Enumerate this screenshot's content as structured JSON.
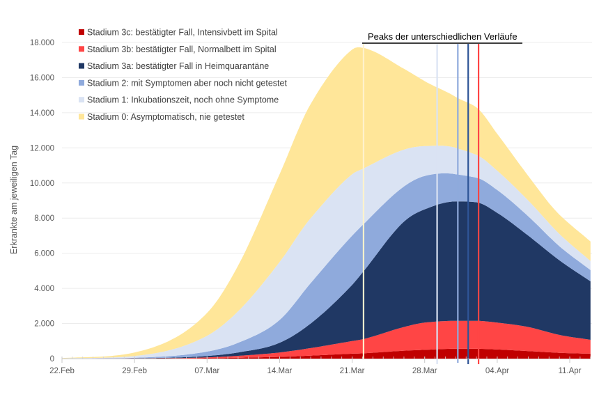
{
  "chart_data": {
    "type": "area",
    "stacked": true,
    "title": "",
    "xlabel": "",
    "ylabel": "Erkrankte am jeweiligen Tag",
    "ylim": [
      0,
      18000
    ],
    "y_ticks": [
      0,
      2000,
      4000,
      6000,
      8000,
      10000,
      12000,
      14000,
      16000,
      18000
    ],
    "y_tick_labels": [
      "0",
      "2.000",
      "4.000",
      "6.000",
      "8.000",
      "10.000",
      "12.000",
      "14.000",
      "16.000",
      "18.000"
    ],
    "x_start_label": "22.Feb",
    "x_range_days": [
      0,
      51
    ],
    "x_ticks_days": [
      0,
      7,
      14,
      21,
      28,
      35,
      42,
      49
    ],
    "x_tick_labels": [
      "22.Feb",
      "29.Feb",
      "07.Mar",
      "14.Mar",
      "21.Mar",
      "28.Mar",
      "04.Apr",
      "11.Apr"
    ],
    "grid": true,
    "legend_position": "top-left",
    "x_days": [
      0,
      7,
      14,
      17,
      21,
      24,
      28,
      29,
      33,
      35,
      38,
      40,
      42,
      45,
      48,
      51
    ],
    "series": [
      {
        "name": "Stadium 3c: bestätigter Fall, Intensivbett im Spital",
        "color": "#c00000",
        "values": [
          0,
          2,
          20,
          50,
          100,
          170,
          280,
          300,
          450,
          500,
          560,
          560,
          520,
          430,
          330,
          280
        ]
      },
      {
        "name": "Stadium 3b: bestätigter Fall, Normalbett im Spital",
        "color": "#ff4545",
        "values": [
          1,
          6,
          50,
          110,
          250,
          430,
          720,
          800,
          1350,
          1550,
          1590,
          1590,
          1530,
          1370,
          1020,
          790
        ]
      },
      {
        "name": "Stadium 3a: bestätigter Fall in Heimquarantäne",
        "color": "#203864",
        "values": [
          1,
          12,
          80,
          190,
          550,
          1400,
          3200,
          3800,
          6000,
          6450,
          6800,
          6750,
          6250,
          5200,
          4250,
          3330
        ]
      },
      {
        "name": "Stadium 2: mit Symptomen aber noch nicht getestet",
        "color": "#8faadc",
        "values": [
          3,
          30,
          250,
          550,
          1300,
          2300,
          2800,
          2700,
          2000,
          1900,
          1550,
          1400,
          1300,
          1100,
          800,
          640
        ]
      },
      {
        "name": "Stadium 1: Inkubationszeit, noch ohne Symptome",
        "color": "#dae3f3",
        "values": [
          10,
          100,
          900,
          1800,
          3300,
          3700,
          3500,
          3200,
          2100,
          1700,
          1500,
          1300,
          1100,
          900,
          700,
          520
        ]
      },
      {
        "name": "Stadium 0: Asymptomatisch, nie getestet",
        "color": "#ffe699",
        "values": [
          15,
          200,
          1300,
          2600,
          5000,
          6500,
          7100,
          6900,
          4600,
          3700,
          2900,
          2700,
          2100,
          1400,
          1100,
          1110
        ]
      }
    ],
    "legend_order": [
      0,
      1,
      2,
      3,
      4,
      5
    ],
    "annotations": [
      {
        "text": "Peaks der unterschiedlichen Verläufe",
        "type": "label"
      }
    ],
    "peak_lines": [
      {
        "series": "Stadium 0",
        "day": 29.1,
        "color": "#fff2cc"
      },
      {
        "series": "Stadium 1",
        "day": 36.2,
        "color": "#dae3f3"
      },
      {
        "series": "Stadium 2",
        "day": 38.2,
        "color": "#8faadc"
      },
      {
        "series": "Stadium 3a",
        "day": 39.2,
        "color": "#2f5597"
      },
      {
        "series": "Stadium 3b/3c",
        "day": 40.2,
        "color": "#ff4545"
      }
    ]
  }
}
